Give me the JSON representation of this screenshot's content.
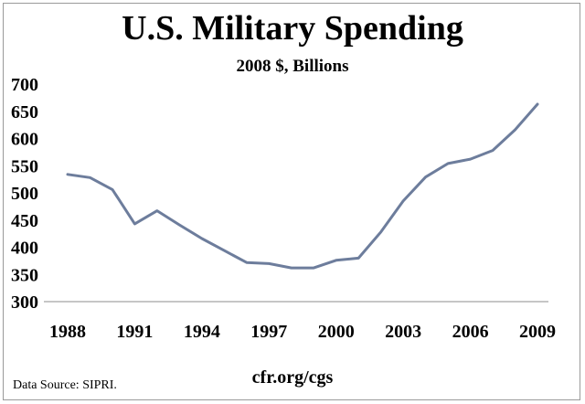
{
  "chart_data": {
    "type": "line",
    "title": "U.S. Military Spending",
    "subtitle": "2008 $, Billions",
    "xlabel": "",
    "ylabel": "",
    "x": [
      1988,
      1989,
      1990,
      1991,
      1992,
      1993,
      1994,
      1995,
      1996,
      1997,
      1998,
      1999,
      2000,
      2001,
      2002,
      2003,
      2004,
      2005,
      2006,
      2007,
      2008,
      2009
    ],
    "series": [
      {
        "values": [
          534,
          528,
          506,
          443,
          467,
          441,
          416,
          394,
          372,
          370,
          362,
          362,
          376,
          380,
          428,
          485,
          529,
          554,
          562,
          578,
          616,
          663
        ]
      }
    ],
    "xlim": [
      1988,
      2009
    ],
    "ylim": [
      300,
      700
    ],
    "x_ticks": [
      "1988",
      "1991",
      "1994",
      "1997",
      "2000",
      "2003",
      "2006",
      "2009"
    ],
    "y_ticks": [
      "300",
      "350",
      "400",
      "450",
      "500",
      "550",
      "600",
      "650",
      "700"
    ],
    "grid": false,
    "legend": "none",
    "line_color": "#6d7d9c"
  },
  "footer": {
    "source": "Data Source: SIPRI.",
    "site": "cfr.org/cgs"
  }
}
